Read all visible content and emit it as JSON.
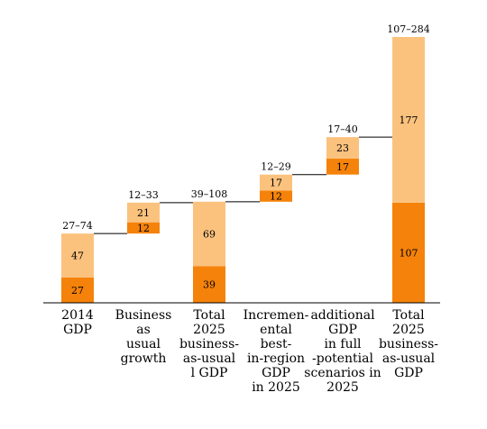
{
  "chart_data": {
    "type": "bar",
    "subtype": "waterfall",
    "title": "",
    "xlabel": "",
    "ylabel": "",
    "ylim": [
      0,
      300
    ],
    "axes_visible": false,
    "grid": false,
    "legend": "none",
    "colors": {
      "lower_segment": "#f5820a",
      "upper_segment": "#fbc27e",
      "connector": "#000000",
      "baseline": "#000000"
    },
    "categories": [
      [
        "2014",
        "GDP"
      ],
      [
        "Business",
        "as",
        "usual",
        "growth"
      ],
      [
        "Total",
        "2025",
        "business-",
        "as-usual",
        "l GDP"
      ],
      [
        "Incremen-",
        "ental",
        "best-",
        "in-region",
        "GDP",
        "in 2025"
      ],
      [
        "additional",
        "GDP",
        "in full",
        "-potential",
        "scenarios in",
        "2025"
      ],
      [
        "Total",
        "2025",
        "business-",
        "as-usual",
        "GDP"
      ]
    ],
    "bars": [
      {
        "base": 0,
        "lower": 27,
        "upper": 47,
        "range_label": "27–74",
        "lower_label": "27",
        "upper_label": "47"
      },
      {
        "base": 74,
        "lower": 12,
        "upper": 21,
        "range_label": "12–33",
        "lower_label": "12",
        "upper_label": "21"
      },
      {
        "base": 0,
        "lower": 39,
        "upper": 69,
        "range_label": "39–108",
        "lower_label": "39",
        "upper_label": "69"
      },
      {
        "base": 108,
        "lower": 12,
        "upper": 17,
        "range_label": "12–29",
        "lower_label": "12",
        "upper_label": "17"
      },
      {
        "base": 137,
        "lower": 17,
        "upper": 23,
        "range_label": "17–40",
        "lower_label": "17",
        "upper_label": "23"
      },
      {
        "base": 0,
        "lower": 107,
        "upper": 177,
        "range_label": "107–284",
        "lower_label": "107",
        "upper_label": "177"
      }
    ]
  }
}
